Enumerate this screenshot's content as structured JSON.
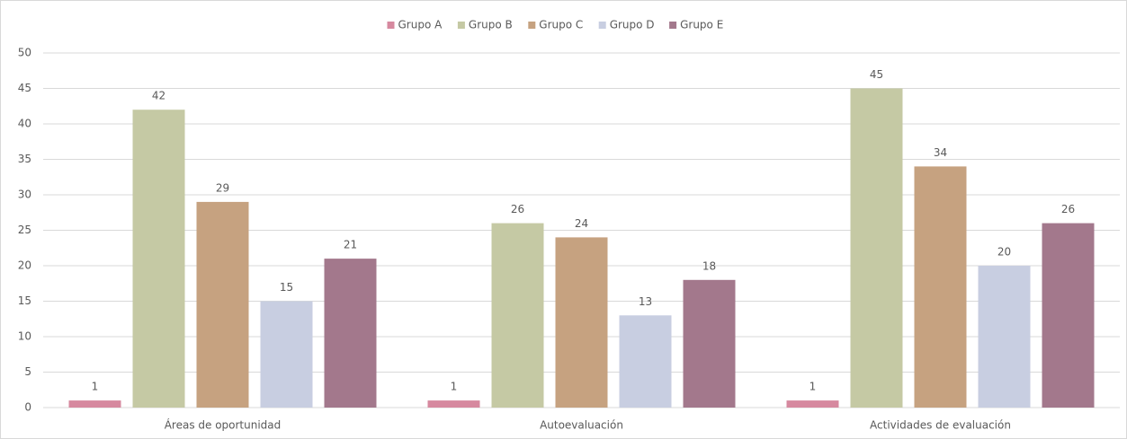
{
  "chart_data": {
    "type": "bar",
    "categories": [
      "Áreas de oportunidad",
      "Autoevaluación",
      "Actividades de evaluación"
    ],
    "series": [
      {
        "name": "Grupo A",
        "color": "#d6899f",
        "values": [
          1,
          1,
          1
        ]
      },
      {
        "name": "Grupo B",
        "color": "#c5c9a4",
        "values": [
          42,
          26,
          45
        ]
      },
      {
        "name": "Grupo C",
        "color": "#c6a280",
        "values": [
          29,
          24,
          34
        ]
      },
      {
        "name": "Grupo D",
        "color": "#c8cee1",
        "values": [
          15,
          13,
          20
        ]
      },
      {
        "name": "Grupo E",
        "color": "#a3788c",
        "values": [
          21,
          18,
          26
        ]
      }
    ],
    "ylim": [
      0,
      50
    ],
    "yticks": [
      0,
      5,
      10,
      15,
      20,
      25,
      30,
      35,
      40,
      45,
      50
    ],
    "grid": true,
    "legend": "top"
  }
}
